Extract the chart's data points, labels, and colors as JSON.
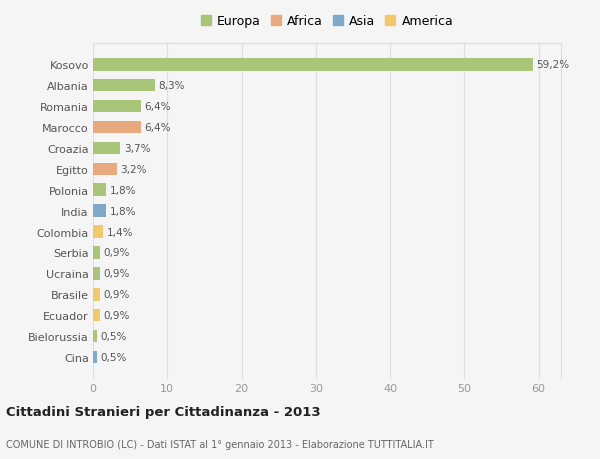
{
  "countries": [
    "Kosovo",
    "Albania",
    "Romania",
    "Marocco",
    "Croazia",
    "Egitto",
    "Polonia",
    "India",
    "Colombia",
    "Serbia",
    "Ucraina",
    "Brasile",
    "Ecuador",
    "Bielorussia",
    "Cina"
  ],
  "values": [
    59.2,
    8.3,
    6.4,
    6.4,
    3.7,
    3.2,
    1.8,
    1.8,
    1.4,
    0.9,
    0.9,
    0.9,
    0.9,
    0.5,
    0.5
  ],
  "labels": [
    "59,2%",
    "8,3%",
    "6,4%",
    "6,4%",
    "3,7%",
    "3,2%",
    "1,8%",
    "1,8%",
    "1,4%",
    "0,9%",
    "0,9%",
    "0,9%",
    "0,9%",
    "0,5%",
    "0,5%"
  ],
  "categories": [
    "Europa",
    "Europa",
    "Europa",
    "Africa",
    "Europa",
    "Africa",
    "Europa",
    "Asia",
    "America",
    "Europa",
    "Europa",
    "America",
    "America",
    "Europa",
    "Asia"
  ],
  "colors": {
    "Europa": "#a8c57a",
    "Africa": "#e8a97e",
    "Asia": "#7fa8c9",
    "America": "#f0c96a"
  },
  "legend_order": [
    "Europa",
    "Africa",
    "Asia",
    "America"
  ],
  "title": "Cittadini Stranieri per Cittadinanza - 2013",
  "subtitle": "COMUNE DI INTROBIO (LC) - Dati ISTAT al 1° gennaio 2013 - Elaborazione TUTTITALIA.IT",
  "xlim": [
    0,
    63
  ],
  "xticks": [
    0,
    10,
    20,
    30,
    40,
    50,
    60
  ],
  "background_color": "#f5f5f5",
  "grid_color": "#dddddd"
}
